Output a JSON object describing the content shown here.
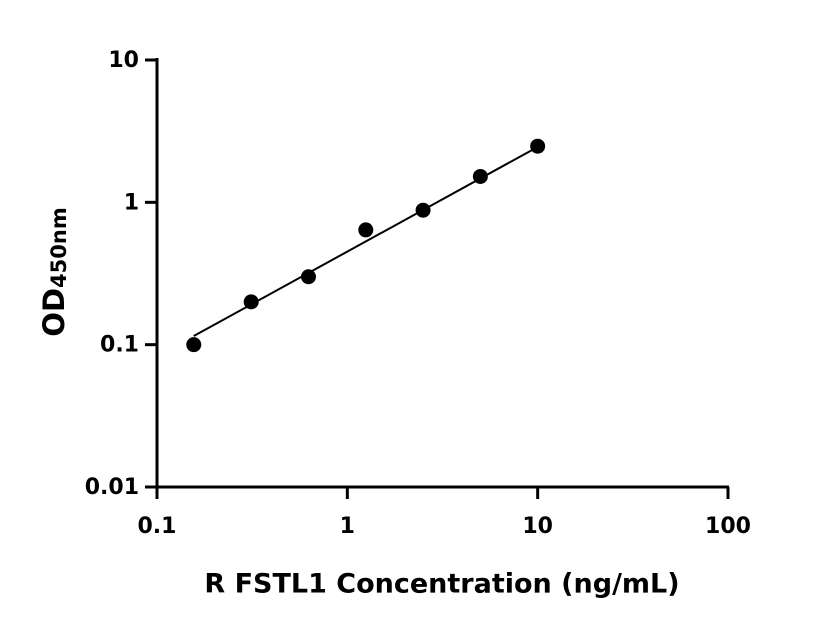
{
  "chart_data": {
    "type": "scatter",
    "xlabel": "R FSTL1 Concentration (ng/mL)",
    "ylabel": "OD",
    "ylabel_sub": "450nm",
    "xscale": "log",
    "yscale": "log",
    "xlim": [
      0.1,
      100
    ],
    "ylim": [
      0.01,
      10
    ],
    "xticks": [
      0.1,
      1,
      10,
      100
    ],
    "yticks": [
      0.01,
      0.1,
      1,
      10
    ],
    "color": "#000000",
    "x": [
      0.156,
      0.3125,
      0.625,
      1.25,
      2.5,
      5,
      10
    ],
    "values": [
      0.1,
      0.2,
      0.3,
      0.64,
      0.88,
      1.52,
      2.48
    ],
    "fit_line": {
      "x": [
        0.156,
        10
      ],
      "values": [
        0.115,
        2.45
      ]
    }
  }
}
